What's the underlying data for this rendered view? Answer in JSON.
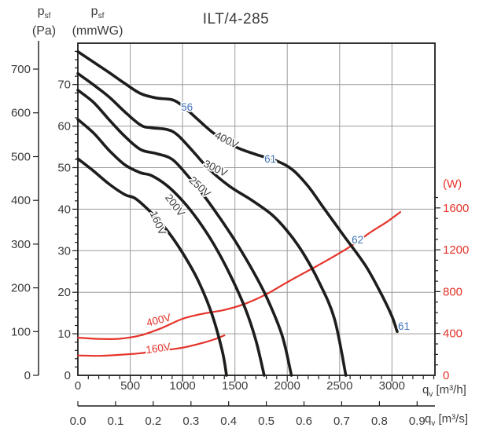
{
  "title": "ILT/4-285",
  "axes": {
    "pa": {
      "sym": "p",
      "sub": "sf",
      "unit": "(Pa)",
      "ticks": [
        0,
        100,
        200,
        300,
        400,
        500,
        600,
        700
      ]
    },
    "mmwg": {
      "sym": "p",
      "sub": "sf",
      "unit": "(mmWG)",
      "ticks": [
        0,
        10,
        20,
        30,
        40,
        50,
        60,
        70
      ]
    },
    "watts": {
      "unit": "(W)",
      "ticks": [
        0,
        400,
        800,
        1200,
        1600
      ]
    },
    "flow_h": {
      "sym": "q",
      "sub": "v",
      "unit": "[m³/h]",
      "ticks": [
        0,
        500,
        1000,
        1500,
        2000,
        2500,
        3000
      ]
    },
    "flow_s": {
      "sym": "q",
      "sub": "v",
      "unit": "[m³/s]",
      "ticks": [
        "0.0",
        "0.1",
        "0.2",
        "0.3",
        "0.4",
        "0.5",
        "0.6",
        "0.7",
        "0.8",
        "0.9"
      ]
    }
  },
  "chart_data": {
    "type": "line",
    "title": "ILT/4-285",
    "x_unit": "m³/h",
    "x_range": [
      0,
      3400
    ],
    "pressure_unit": "Pa",
    "pressure_range": [
      0,
      760
    ],
    "power_unit": "W",
    "power_range": [
      0,
      1700
    ],
    "colors": {
      "curve": "#1d1d1b",
      "power": "#e5332a",
      "noise": "#4173b8",
      "grid": "#9b9b9b",
      "text": "#3c3c3b"
    },
    "pressure_curves": [
      {
        "label": "400V",
        "label_q": 1405,
        "label_pa": 531,
        "label_angle": 27,
        "points": [
          [
            0,
            740
          ],
          [
            150,
            716
          ],
          [
            300,
            692
          ],
          [
            450,
            667
          ],
          [
            600,
            644
          ],
          [
            750,
            634
          ],
          [
            900,
            630
          ],
          [
            1000,
            616
          ],
          [
            1150,
            584
          ],
          [
            1300,
            553
          ],
          [
            1500,
            523
          ],
          [
            1700,
            505
          ],
          [
            1900,
            490
          ],
          [
            2050,
            470
          ],
          [
            2200,
            432
          ],
          [
            2350,
            382
          ],
          [
            2550,
            316
          ],
          [
            2750,
            250
          ],
          [
            2900,
            185
          ],
          [
            3000,
            135
          ],
          [
            3050,
            100
          ]
        ]
      },
      {
        "label": "300V",
        "label_q": 1300,
        "label_pa": 466,
        "label_angle": 26,
        "points": [
          [
            0,
            690
          ],
          [
            150,
            664
          ],
          [
            300,
            636
          ],
          [
            450,
            602
          ],
          [
            600,
            572
          ],
          [
            700,
            566
          ],
          [
            850,
            562
          ],
          [
            950,
            550
          ],
          [
            1100,
            512
          ],
          [
            1250,
            472
          ],
          [
            1450,
            432
          ],
          [
            1650,
            402
          ],
          [
            1850,
            368
          ],
          [
            2000,
            330
          ],
          [
            2150,
            280
          ],
          [
            2300,
            215
          ],
          [
            2450,
            130
          ],
          [
            2560,
            0
          ]
        ]
      },
      {
        "label": "250V",
        "label_q": 1142,
        "label_pa": 425,
        "label_angle": 43,
        "points": [
          [
            0,
            652
          ],
          [
            150,
            624
          ],
          [
            300,
            584
          ],
          [
            450,
            546
          ],
          [
            600,
            516
          ],
          [
            750,
            507
          ],
          [
            900,
            494
          ],
          [
            1050,
            456
          ],
          [
            1200,
            412
          ],
          [
            1350,
            362
          ],
          [
            1500,
            308
          ],
          [
            1650,
            248
          ],
          [
            1800,
            180
          ],
          [
            1950,
            92
          ],
          [
            2040,
            0
          ]
        ]
      },
      {
        "label": "200V",
        "label_q": 900,
        "label_pa": 384,
        "label_angle": 53,
        "points": [
          [
            0,
            585
          ],
          [
            150,
            554
          ],
          [
            300,
            514
          ],
          [
            450,
            481
          ],
          [
            600,
            463
          ],
          [
            700,
            457
          ],
          [
            850,
            434
          ],
          [
            1000,
            399
          ],
          [
            1150,
            354
          ],
          [
            1300,
            299
          ],
          [
            1450,
            232
          ],
          [
            1600,
            152
          ],
          [
            1700,
            80
          ],
          [
            1780,
            0
          ]
        ]
      },
      {
        "label": "160V",
        "label_q": 735,
        "label_pa": 345,
        "label_angle": 66,
        "points": [
          [
            0,
            495
          ],
          [
            150,
            467
          ],
          [
            300,
            437
          ],
          [
            450,
            413
          ],
          [
            550,
            404
          ],
          [
            700,
            372
          ],
          [
            850,
            332
          ],
          [
            1000,
            280
          ],
          [
            1150,
            216
          ],
          [
            1280,
            140
          ],
          [
            1380,
            55
          ],
          [
            1420,
            0
          ]
        ]
      }
    ],
    "power_curves": [
      {
        "label": "400V",
        "label_q": 780,
        "label_w": 495,
        "label_angle": -14,
        "points": [
          [
            0,
            360
          ],
          [
            200,
            348
          ],
          [
            400,
            350
          ],
          [
            600,
            382
          ],
          [
            800,
            452
          ],
          [
            1000,
            540
          ],
          [
            1200,
            590
          ],
          [
            1400,
            625
          ],
          [
            1600,
            685
          ],
          [
            1800,
            775
          ],
          [
            2000,
            890
          ],
          [
            2200,
            1000
          ],
          [
            2400,
            1110
          ],
          [
            2600,
            1230
          ],
          [
            2800,
            1370
          ],
          [
            2950,
            1465
          ],
          [
            3080,
            1560
          ]
        ]
      },
      {
        "label": "160V",
        "label_q": 772,
        "label_w": 225,
        "label_angle": -8,
        "points": [
          [
            0,
            190
          ],
          [
            200,
            186
          ],
          [
            400,
            196
          ],
          [
            600,
            212
          ],
          [
            800,
            238
          ],
          [
            1000,
            264
          ],
          [
            1200,
            312
          ],
          [
            1320,
            350
          ],
          [
            1400,
            382
          ]
        ]
      }
    ],
    "noise_labels": [
      {
        "text": "56",
        "q": 985,
        "pa": 605
      },
      {
        "text": "61",
        "q": 1781,
        "pa": 486
      },
      {
        "text": "62",
        "q": 2615,
        "pa": 302
      },
      {
        "text": "61",
        "q": 3058,
        "pa": 104
      }
    ]
  }
}
